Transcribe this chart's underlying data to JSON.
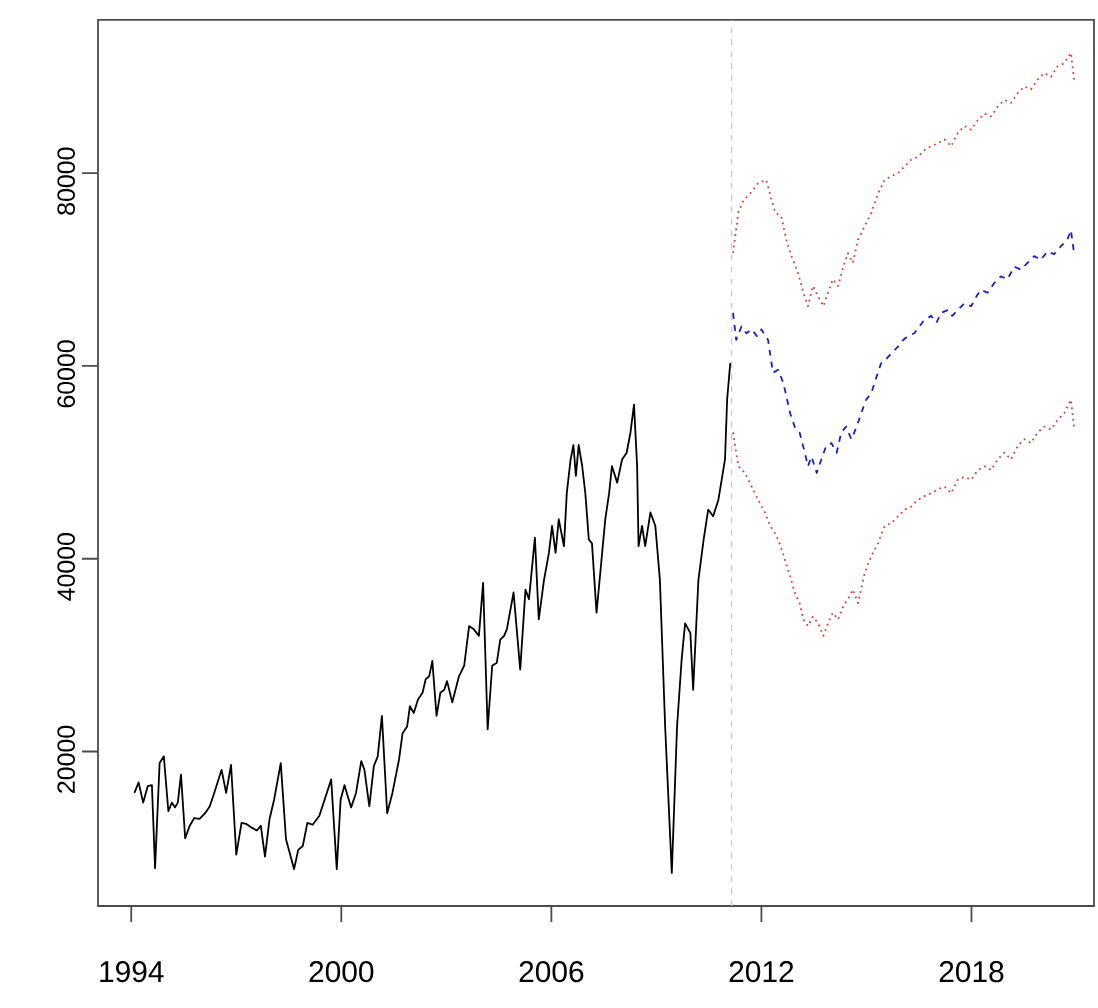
{
  "chart_data": {
    "type": "line",
    "xlim": [
      1993.05,
      2021.5
    ],
    "ylim": [
      3970,
      95900
    ],
    "xticks": [
      1994,
      2000,
      2006,
      2012,
      2018
    ],
    "yticks": [
      20000,
      40000,
      60000,
      80000
    ],
    "ref_lines": [
      {
        "axis": "x",
        "value": 2011.15,
        "color": "#c8c8c8",
        "line_style": "dashed"
      }
    ],
    "series": [
      {
        "color": "#000000",
        "line_style": "solid",
        "x": [
          1994.09,
          1994.21,
          1994.34,
          1994.47,
          1994.59,
          1994.68,
          1994.81,
          1994.93,
          1995.06,
          1995.16,
          1995.25,
          1995.33,
          1995.42,
          1995.54,
          1995.67,
          1995.8,
          1995.95,
          1996.11,
          1996.24,
          1996.37,
          1996.58,
          1996.71,
          1996.85,
          1997.0,
          1997.15,
          1997.28,
          1997.44,
          1997.59,
          1997.7,
          1997.82,
          1997.95,
          1998.08,
          1998.27,
          1998.42,
          1998.65,
          1998.77,
          1998.9,
          1999.03,
          1999.18,
          1999.37,
          1999.56,
          1999.71,
          1999.87,
          1999.98,
          2000.09,
          2000.28,
          2000.42,
          2000.57,
          2000.66,
          2000.8,
          2000.93,
          2001.04,
          2001.16,
          2001.31,
          2001.46,
          2001.65,
          2001.75,
          2001.88,
          2001.96,
          2002.07,
          2002.19,
          2002.32,
          2002.41,
          2002.51,
          2002.6,
          2002.72,
          2002.83,
          2002.94,
          2003.02,
          2003.17,
          2003.36,
          2003.51,
          2003.65,
          2003.78,
          2003.93,
          2004.05,
          2004.18,
          2004.31,
          2004.44,
          2004.54,
          2004.65,
          2004.73,
          2004.92,
          2005.11,
          2005.26,
          2005.36,
          2005.53,
          2005.64,
          2005.79,
          2005.93,
          2006.02,
          2006.12,
          2006.21,
          2006.36,
          2006.44,
          2006.55,
          2006.63,
          2006.7,
          2006.78,
          2006.88,
          2006.97,
          2007.07,
          2007.16,
          2007.29,
          2007.45,
          2007.54,
          2007.65,
          2007.73,
          2007.88,
          2008.02,
          2008.15,
          2008.26,
          2008.36,
          2008.45,
          2008.49,
          2008.59,
          2008.68,
          2008.83,
          2008.97,
          2009.1,
          2009.25,
          2009.44,
          2009.59,
          2009.72,
          2009.82,
          2009.97,
          2010.05,
          2010.2,
          2010.35,
          2010.48,
          2010.62,
          2010.77,
          2010.96,
          2011.02,
          2011.11
        ],
        "values": [
          15700,
          16800,
          14700,
          16400,
          16500,
          7900,
          18800,
          19500,
          13800,
          14700,
          14200,
          14700,
          17600,
          11000,
          12300,
          13100,
          13000,
          13600,
          14300,
          15700,
          18100,
          15700,
          18600,
          9300,
          12600,
          12500,
          12100,
          11800,
          12300,
          9100,
          13000,
          15000,
          18800,
          10900,
          7800,
          9800,
          10200,
          12600,
          12400,
          13300,
          15400,
          17100,
          7800,
          15000,
          16500,
          14200,
          15700,
          19000,
          18100,
          14300,
          18500,
          19500,
          23700,
          13600,
          15700,
          19200,
          21900,
          22600,
          24700,
          24000,
          25400,
          26100,
          27500,
          27800,
          29400,
          23700,
          26100,
          26400,
          27300,
          25100,
          27800,
          28900,
          33000,
          32700,
          32000,
          37500,
          22300,
          28900,
          29200,
          31600,
          32000,
          32700,
          36500,
          28500,
          36800,
          35800,
          42200,
          33700,
          37800,
          40600,
          43400,
          40600,
          44100,
          41300,
          46800,
          50300,
          51800,
          48600,
          51800,
          49600,
          46800,
          42000,
          41600,
          34400,
          40600,
          44100,
          46800,
          49600,
          47900,
          50300,
          51000,
          53100,
          56000,
          49600,
          41300,
          43400,
          41300,
          44800,
          43400,
          37800,
          22600,
          7400,
          22600,
          29500,
          33300,
          32300,
          26400,
          37800,
          42000,
          45100,
          44400,
          46100,
          50300,
          56500,
          60300
        ]
      },
      {
        "color": "#1f1fc0",
        "line_style": "dashed",
        "x": [
          2011.19,
          2011.28,
          2011.43,
          2011.57,
          2011.72,
          2011.87,
          2012.0,
          2012.19,
          2012.33,
          2012.48,
          2012.63,
          2012.82,
          2012.95,
          2013.09,
          2013.24,
          2013.33,
          2013.43,
          2013.58,
          2013.71,
          2013.85,
          2014.0,
          2014.15,
          2014.28,
          2014.42,
          2014.57,
          2014.72,
          2014.85,
          2014.99,
          2015.14,
          2015.29,
          2015.42,
          2015.56,
          2015.71,
          2015.9,
          2016.05,
          2016.18,
          2016.37,
          2016.51,
          2016.66,
          2016.85,
          2017.0,
          2017.13,
          2017.32,
          2017.45,
          2017.61,
          2017.8,
          2017.99,
          2018.14,
          2018.27,
          2018.46,
          2018.65,
          2018.84,
          2019.03,
          2019.22,
          2019.41,
          2019.6,
          2019.79,
          2019.98,
          2020.17,
          2020.36,
          2020.55,
          2020.74,
          2020.84,
          2020.93
        ],
        "values": [
          65500,
          62700,
          64100,
          63400,
          63800,
          63100,
          63800,
          62700,
          59300,
          59600,
          58200,
          55100,
          53700,
          53100,
          51000,
          49600,
          50600,
          48900,
          50300,
          51700,
          52000,
          51000,
          53100,
          53700,
          52400,
          53700,
          55100,
          56500,
          57200,
          58900,
          60300,
          60700,
          61300,
          62000,
          62700,
          63100,
          63400,
          64100,
          64800,
          65200,
          64500,
          65500,
          65800,
          65200,
          65800,
          66500,
          66200,
          67200,
          67900,
          67600,
          68600,
          69300,
          69000,
          70300,
          70000,
          70700,
          71400,
          71000,
          71900,
          71600,
          72400,
          73100,
          74100,
          71700
        ]
      },
      {
        "color": "#cc4444",
        "line_style": "dotted",
        "x": [
          2011.19,
          2011.25,
          2011.34,
          2011.49,
          2011.68,
          2011.91,
          2012.14,
          2012.29,
          2012.4,
          2012.57,
          2012.71,
          2012.86,
          2013.05,
          2013.2,
          2013.33,
          2013.47,
          2013.62,
          2013.77,
          2013.9,
          2014.04,
          2014.19,
          2014.34,
          2014.47,
          2014.61,
          2014.76,
          2014.95,
          2015.14,
          2015.33,
          2015.52,
          2015.71,
          2015.9,
          2016.09,
          2016.28,
          2016.47,
          2016.66,
          2016.85,
          2017.04,
          2017.23,
          2017.42,
          2017.61,
          2017.8,
          2017.99,
          2018.18,
          2018.37,
          2018.56,
          2018.75,
          2018.94,
          2019.13,
          2019.32,
          2019.51,
          2019.7,
          2019.89,
          2020.08,
          2020.27,
          2020.46,
          2020.65,
          2020.84,
          2020.93
        ],
        "values": [
          71700,
          73400,
          75900,
          77200,
          77900,
          79000,
          79300,
          77200,
          75900,
          75500,
          73100,
          71400,
          69600,
          67600,
          66200,
          68300,
          67200,
          66200,
          67600,
          69000,
          68300,
          70300,
          71700,
          70700,
          73100,
          74500,
          75900,
          77900,
          79300,
          79700,
          80000,
          80700,
          81400,
          81700,
          82400,
          82800,
          83100,
          83500,
          82800,
          84200,
          84900,
          84500,
          85500,
          86200,
          85900,
          86900,
          87600,
          87300,
          88300,
          89000,
          88700,
          89700,
          90400,
          90000,
          91100,
          91400,
          92500,
          89700
        ]
      },
      {
        "color": "#cc4444",
        "line_style": "dotted",
        "x": [
          2011.19,
          2011.34,
          2011.53,
          2011.72,
          2011.91,
          2012.1,
          2012.25,
          2012.38,
          2012.52,
          2012.67,
          2012.82,
          2012.95,
          2013.09,
          2013.2,
          2013.33,
          2013.47,
          2013.62,
          2013.77,
          2013.9,
          2014.04,
          2014.19,
          2014.34,
          2014.47,
          2014.61,
          2014.76,
          2014.95,
          2015.14,
          2015.33,
          2015.52,
          2015.71,
          2015.9,
          2016.09,
          2016.28,
          2016.47,
          2016.66,
          2016.85,
          2017.04,
          2017.23,
          2017.42,
          2017.61,
          2017.8,
          2017.99,
          2018.18,
          2018.37,
          2018.56,
          2018.75,
          2018.94,
          2019.13,
          2019.32,
          2019.51,
          2019.7,
          2019.89,
          2020.08,
          2020.27,
          2020.46,
          2020.65,
          2020.84,
          2020.93
        ],
        "values": [
          53100,
          49600,
          48900,
          47500,
          46100,
          44800,
          43400,
          42700,
          41600,
          39900,
          38200,
          36500,
          35400,
          33700,
          33000,
          34000,
          33300,
          32000,
          33300,
          34400,
          33700,
          35100,
          35800,
          36800,
          35400,
          38500,
          40300,
          41600,
          43400,
          43700,
          44400,
          45100,
          45400,
          46100,
          46500,
          46800,
          47200,
          47500,
          46800,
          48200,
          48500,
          48200,
          49200,
          49600,
          49200,
          50300,
          51000,
          50300,
          51700,
          52400,
          52000,
          53100,
          53700,
          53400,
          54400,
          55100,
          56500,
          53700
        ]
      }
    ]
  }
}
